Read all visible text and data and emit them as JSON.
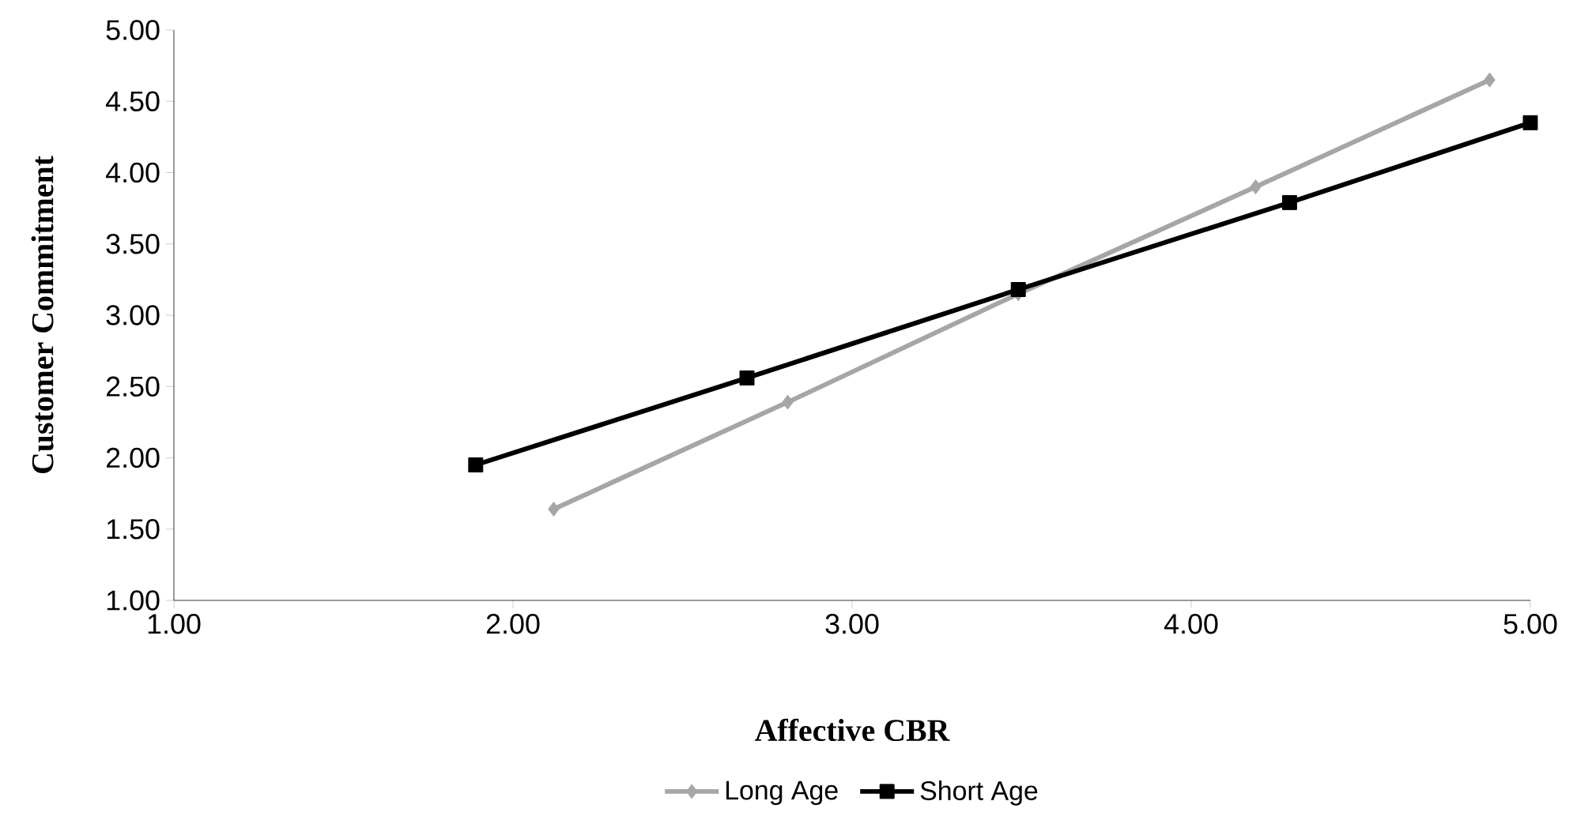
{
  "chart_data": {
    "type": "line",
    "xlabel": "Affective CBR",
    "ylabel": "Customer Commitment",
    "series": [
      {
        "name": "Long Age",
        "color": "#a6a6a6",
        "marker": "diamond",
        "x": [
          2.12,
          2.81,
          3.49,
          4.19,
          4.88
        ],
        "values": [
          1.64,
          2.39,
          3.15,
          3.9,
          4.65
        ]
      },
      {
        "name": "Short Age",
        "color": "#000000",
        "marker": "square",
        "x": [
          1.89,
          2.69,
          3.49,
          4.29,
          5.0
        ],
        "values": [
          1.95,
          2.56,
          3.18,
          3.79,
          4.35
        ]
      }
    ],
    "xlim": [
      1,
      5
    ],
    "ylim": [
      1,
      5
    ],
    "xticks": [
      {
        "value": 1,
        "label": "1.00"
      },
      {
        "value": 2,
        "label": "2.00"
      },
      {
        "value": 3,
        "label": "3.00"
      },
      {
        "value": 4,
        "label": "4.00"
      },
      {
        "value": 5,
        "label": "5.00"
      }
    ],
    "yticks": [
      {
        "value": 1,
        "label": "1.00"
      },
      {
        "value": 1.5,
        "label": "1.50"
      },
      {
        "value": 2,
        "label": "2.00"
      },
      {
        "value": 2.5,
        "label": "2.50"
      },
      {
        "value": 3,
        "label": "3.00"
      },
      {
        "value": 3.5,
        "label": "3.50"
      },
      {
        "value": 4,
        "label": "4.00"
      },
      {
        "value": 4.5,
        "label": "4.50"
      },
      {
        "value": 5,
        "label": "5.00"
      }
    ],
    "grid": false,
    "legend": "bottom",
    "line_style": "solid"
  }
}
